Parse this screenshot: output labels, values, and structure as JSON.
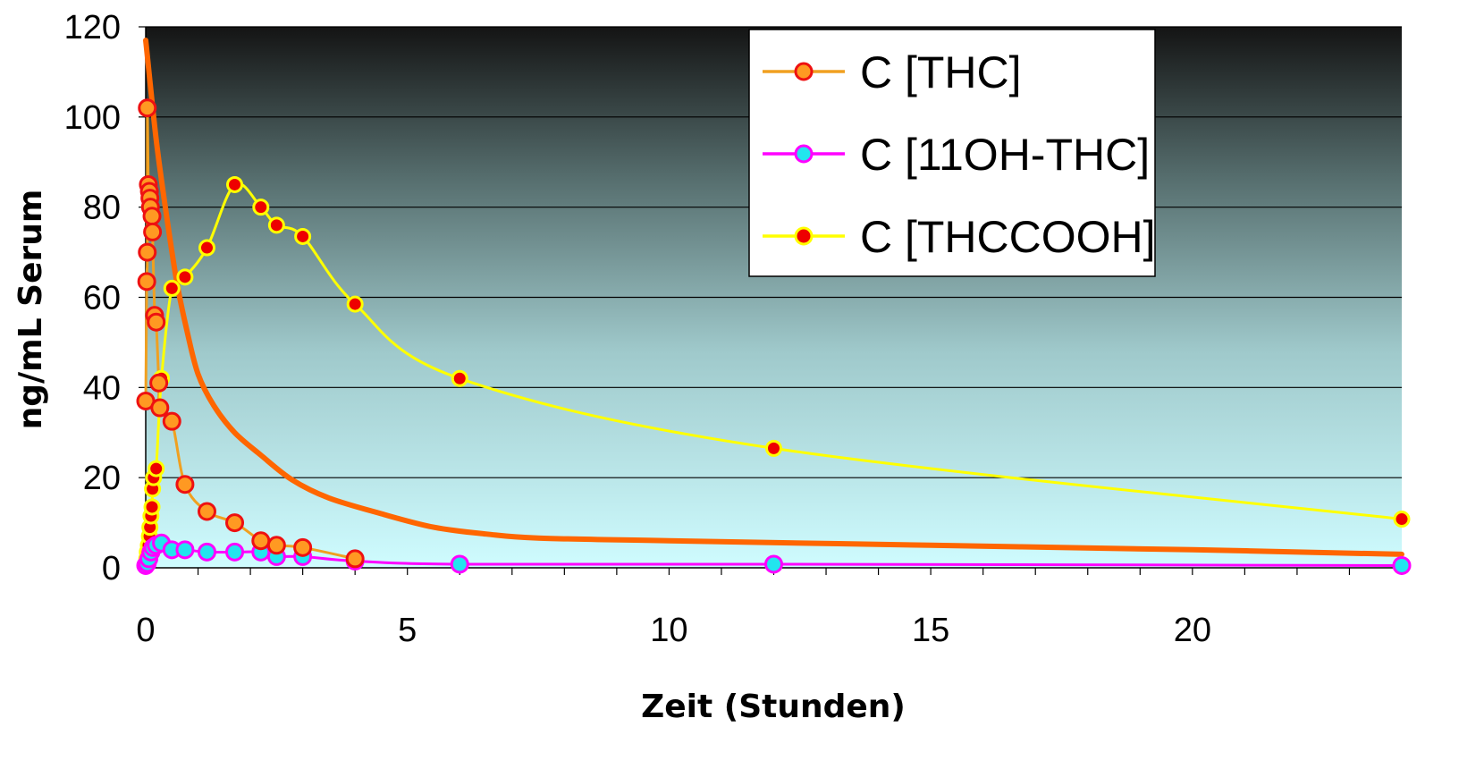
{
  "chart_data": {
    "type": "line",
    "title": "",
    "xlabel": "Zeit (Stunden)",
    "ylabel": "ng/mL Serum",
    "xlim": [
      0,
      24
    ],
    "ylim": [
      0,
      120
    ],
    "x_ticks": [
      0,
      5,
      10,
      15,
      20
    ],
    "y_ticks": [
      0,
      20,
      40,
      60,
      80,
      100,
      120
    ],
    "grid": "horizontal",
    "legend_position": "top-right",
    "background": "vertical gradient from black (top) to light cyan (bottom)",
    "series": [
      {
        "name": "C [THC]",
        "line_color": "#F0A020",
        "marker_fill": "#FF9922",
        "marker_edge": "#EE1111",
        "points": [
          [
            0.0,
            37
          ],
          [
            0.02,
            63.5
          ],
          [
            0.03,
            70
          ],
          [
            0.03,
            102
          ],
          [
            0.05,
            85
          ],
          [
            0.07,
            83.5
          ],
          [
            0.08,
            82
          ],
          [
            0.09,
            80
          ],
          [
            0.12,
            78
          ],
          [
            0.13,
            74.5
          ],
          [
            0.17,
            56
          ],
          [
            0.2,
            54.5
          ],
          [
            0.25,
            41
          ],
          [
            0.27,
            35.5
          ],
          [
            0.5,
            32.5
          ],
          [
            0.75,
            18.5
          ],
          [
            1.17,
            12.5
          ],
          [
            1.7,
            10
          ],
          [
            2.2,
            6
          ],
          [
            2.5,
            5
          ],
          [
            3.0,
            4.5
          ],
          [
            4.0,
            2
          ]
        ]
      },
      {
        "name": "C [11OH-THC]",
        "line_color": "#FF00FF",
        "marker_fill": "#22E5EE",
        "marker_edge": "#FF00FF",
        "points": [
          [
            0.0,
            0.5
          ],
          [
            0.03,
            1
          ],
          [
            0.06,
            2
          ],
          [
            0.1,
            3.5
          ],
          [
            0.14,
            4.5
          ],
          [
            0.2,
            5
          ],
          [
            0.3,
            5.5
          ],
          [
            0.5,
            4
          ],
          [
            0.75,
            4
          ],
          [
            1.17,
            3.5
          ],
          [
            1.7,
            3.5
          ],
          [
            2.2,
            3.5
          ],
          [
            2.5,
            2.5
          ],
          [
            3.0,
            2.5
          ],
          [
            4.0,
            1.5
          ],
          [
            6.0,
            0.8
          ],
          [
            12.0,
            0.8
          ],
          [
            24.0,
            0.5
          ]
        ]
      },
      {
        "name": "C [THCCOOH]",
        "line_color": "#FFFF00",
        "marker_fill": "#EE0000",
        "marker_edge": "#FFFF00",
        "points": [
          [
            0.0,
            0.5
          ],
          [
            0.02,
            2
          ],
          [
            0.03,
            3.5
          ],
          [
            0.05,
            5
          ],
          [
            0.07,
            7
          ],
          [
            0.08,
            9
          ],
          [
            0.1,
            11.5
          ],
          [
            0.12,
            13.5
          ],
          [
            0.13,
            17.5
          ],
          [
            0.15,
            20
          ],
          [
            0.2,
            22
          ],
          [
            0.3,
            42
          ],
          [
            0.5,
            62
          ],
          [
            0.75,
            64.5
          ],
          [
            1.17,
            71
          ],
          [
            1.7,
            85
          ],
          [
            2.2,
            80
          ],
          [
            2.5,
            76
          ],
          [
            3.0,
            73.5
          ],
          [
            4.0,
            58.5
          ],
          [
            6.0,
            42
          ],
          [
            12.0,
            26.5
          ],
          [
            24.0,
            10.8
          ]
        ]
      }
    ],
    "fit_curve": {
      "color": "#FF6600",
      "points": [
        [
          0.0,
          117
        ],
        [
          0.2,
          95
        ],
        [
          0.4,
          78
        ],
        [
          0.6,
          63
        ],
        [
          0.8,
          52
        ],
        [
          1.0,
          43
        ],
        [
          1.3,
          36
        ],
        [
          1.7,
          30
        ],
        [
          2.2,
          25
        ],
        [
          2.8,
          19.5
        ],
        [
          3.5,
          15.5
        ],
        [
          4.5,
          12
        ],
        [
          5.5,
          9
        ],
        [
          6.5,
          7.5
        ],
        [
          7.5,
          6.6
        ],
        [
          10,
          6
        ],
        [
          15,
          5
        ],
        [
          20,
          4
        ],
        [
          24,
          3
        ]
      ]
    }
  }
}
